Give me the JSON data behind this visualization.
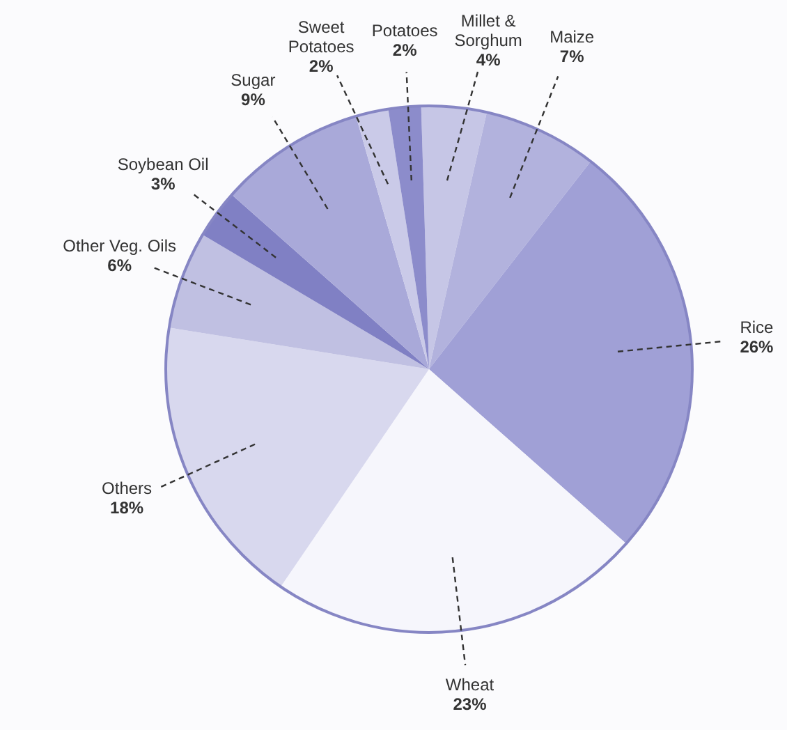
{
  "chart_data": {
    "type": "pie",
    "categories": [
      "Millet & Sorghum",
      "Maize",
      "Rice",
      "Wheat",
      "Others",
      "Other Veg. Oils",
      "Soybean Oil",
      "Sugar",
      "Sweet Potatoes",
      "Potatoes"
    ],
    "values": [
      4,
      7,
      26,
      23,
      18,
      6,
      3,
      9,
      2,
      2
    ],
    "colors": [
      "#c6c6e6",
      "#b2b2dd",
      "#a0a0d6",
      "#f6f6fc",
      "#d8d8ee",
      "#c0c0e2",
      "#8080c4",
      "#a9a9d9",
      "#cacae8",
      "#8c8ccb"
    ],
    "value_labels": [
      "4%",
      "7%",
      "26%",
      "23%",
      "18%",
      "6%",
      "3%",
      "9%",
      "2%",
      "2%"
    ]
  }
}
